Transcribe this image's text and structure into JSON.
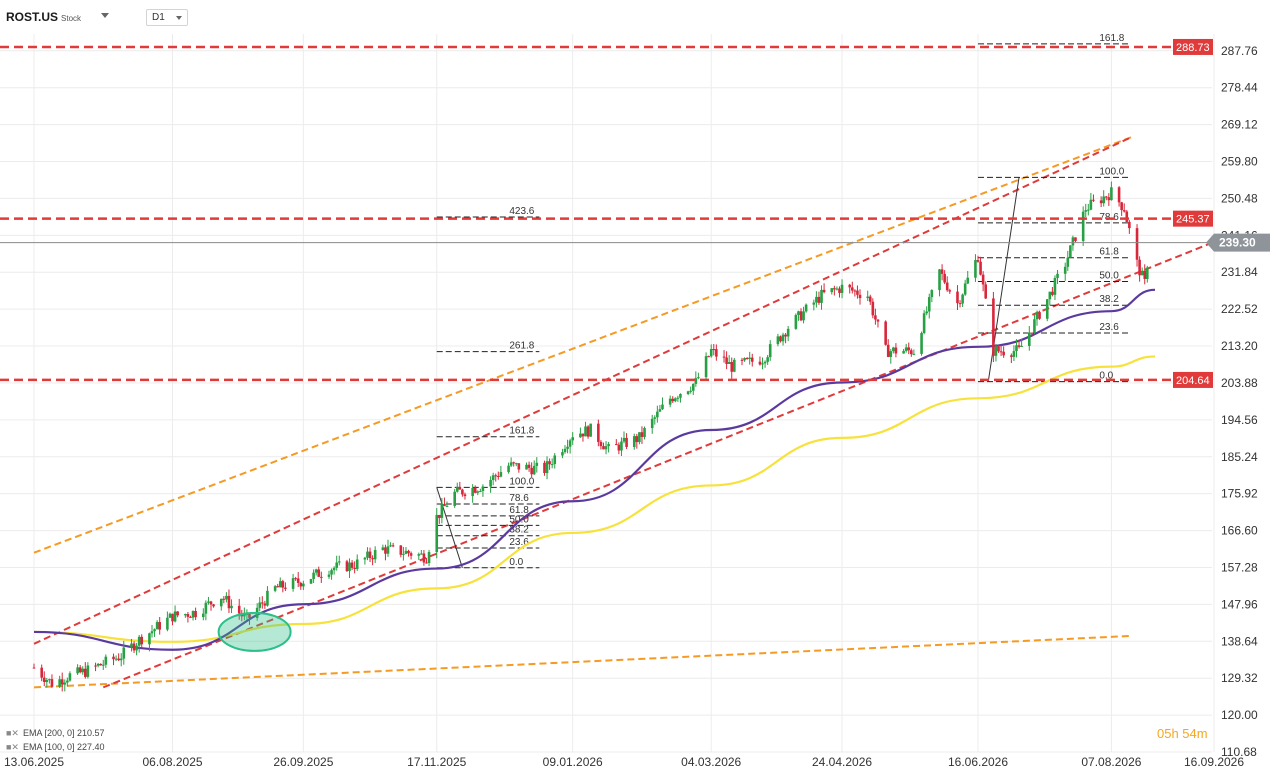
{
  "header": {
    "symbol": "ROST.US",
    "instrument_type": "Stock",
    "timeframe": "D1"
  },
  "chart_data": {
    "type": "candlestick",
    "title": "",
    "xlabel": "",
    "ylabel": "",
    "ylim": [
      110.68,
      292
    ],
    "grid": true,
    "x_ticks": [
      "13.06.2025",
      "06.08.2025",
      "26.09.2025",
      "17.11.2025",
      "09.01.2026",
      "04.03.2026",
      "24.04.2026",
      "16.06.2026",
      "07.08.2026",
      "16.09.2026"
    ],
    "y_ticks": [
      287.76,
      278.44,
      269.12,
      259.8,
      250.48,
      241.16,
      231.84,
      222.52,
      213.2,
      203.88,
      194.56,
      185.24,
      175.92,
      166.6,
      157.28,
      147.96,
      138.64,
      129.32,
      120.0,
      110.68
    ],
    "last_price": 239.3,
    "price_path": [
      [
        "13.06.2025",
        132
      ],
      [
        "20.06.2025",
        128
      ],
      [
        "27.06.2025",
        130
      ],
      [
        "03.07.2025",
        131
      ],
      [
        "17.07.2025",
        135
      ],
      [
        "24.07.2025",
        139
      ],
      [
        "06.08.2025",
        145
      ],
      [
        "15.08.2025",
        146
      ],
      [
        "25.08.2025",
        150
      ],
      [
        "04.09.2025",
        144
      ],
      [
        "15.09.2025",
        152
      ],
      [
        "26.09.2025",
        154
      ],
      [
        "06.10.2025",
        157
      ],
      [
        "16.10.2025",
        158
      ],
      [
        "27.10.2025",
        162
      ],
      [
        "06.11.2025",
        161
      ],
      [
        "13.11.2025",
        160
      ],
      [
        "17.11.2025",
        170
      ],
      [
        "24.11.2025",
        176
      ],
      [
        "05.12.2025",
        178
      ],
      [
        "15.12.2025",
        183
      ],
      [
        "29.12.2025",
        182
      ],
      [
        "09.01.2026",
        191
      ],
      [
        "16.01.2026",
        192
      ],
      [
        "23.01.2026",
        187
      ],
      [
        "04.02.2026",
        190
      ],
      [
        "16.02.2026",
        200
      ],
      [
        "26.02.2026",
        204
      ],
      [
        "04.03.2026",
        212
      ],
      [
        "12.03.2026",
        208
      ],
      [
        "24.03.2026",
        210
      ],
      [
        "03.04.2026",
        218
      ],
      [
        "16.04.2026",
        226
      ],
      [
        "24.04.2026",
        228
      ],
      [
        "04.05.2026",
        226
      ],
      [
        "11.05.2026",
        212
      ],
      [
        "22.05.2026",
        212
      ],
      [
        "01.06.2026",
        232
      ],
      [
        "08.06.2026",
        224
      ],
      [
        "16.06.2026",
        236
      ],
      [
        "22.06.2026",
        212
      ],
      [
        "02.07.2026",
        212
      ],
      [
        "13.07.2026",
        225
      ],
      [
        "20.07.2026",
        234
      ],
      [
        "28.07.2026",
        248
      ],
      [
        "07.08.2026",
        252
      ],
      [
        "12.08.2026",
        248
      ],
      [
        "17.08.2026",
        234
      ],
      [
        "20.08.2026",
        229
      ],
      [
        "22.08.2026",
        239.3
      ]
    ],
    "series": [
      {
        "name": "EMA [200, 0]",
        "last_value": 210.57,
        "color": "#f7e23b",
        "values": [
          [
            "13.06.2025",
            141
          ],
          [
            "06.08.2025",
            138.5
          ],
          [
            "26.09.2025",
            143
          ],
          [
            "17.11.2025",
            152
          ],
          [
            "09.01.2026",
            166
          ],
          [
            "04.03.2026",
            178
          ],
          [
            "24.04.2026",
            190
          ],
          [
            "16.06.2026",
            200
          ],
          [
            "07.08.2026",
            208
          ],
          [
            "24.08.2026",
            210.57
          ]
        ]
      },
      {
        "name": "EMA [100, 0]",
        "last_value": 227.4,
        "color": "#5b3a9e",
        "values": [
          [
            "13.06.2025",
            141
          ],
          [
            "06.08.2025",
            136.5
          ],
          [
            "26.09.2025",
            148
          ],
          [
            "17.11.2025",
            157
          ],
          [
            "09.01.2026",
            174
          ],
          [
            "04.03.2026",
            192
          ],
          [
            "24.04.2026",
            204
          ],
          [
            "16.06.2026",
            213
          ],
          [
            "07.08.2026",
            222
          ],
          [
            "24.08.2026",
            227.4
          ]
        ]
      }
    ],
    "horizontal_levels": [
      {
        "label": "288.73",
        "value": 288.73,
        "color": "#e03a3a"
      },
      {
        "label": "245.37",
        "value": 245.37,
        "color": "#e03a3a"
      },
      {
        "label": "204.64",
        "value": 204.64,
        "color": "#e03a3a"
      }
    ],
    "channel_lines": [
      {
        "color": "#f59a23",
        "points": [
          [
            "13.06.2025",
            161
          ],
          [
            "15.08.2026",
            266
          ]
        ]
      },
      {
        "color": "#f59a23",
        "points": [
          [
            "13.06.2025",
            127
          ],
          [
            "15.08.2026",
            140
          ]
        ]
      },
      {
        "color": "#e03a3a",
        "points": [
          [
            "13.06.2025",
            138
          ],
          [
            "15.08.2026",
            266
          ]
        ]
      },
      {
        "color": "#e03a3a",
        "points": [
          [
            "10.07.2025",
            127
          ],
          [
            "18.09.2026",
            240
          ]
        ]
      }
    ],
    "fib_right": {
      "start": "16.06.2026",
      "end": "14.08.2026",
      "levels": [
        {
          "label": "161.8",
          "value": 289.5
        },
        {
          "label": "100.0",
          "value": 255.8
        },
        {
          "label": "78.6",
          "value": 244.3
        },
        {
          "label": "61.8",
          "value": 235.5
        },
        {
          "label": "50.0",
          "value": 229.5
        },
        {
          "label": "38.2",
          "value": 223.5
        },
        {
          "label": "23.6",
          "value": 216.5
        },
        {
          "label": "0.0",
          "value": 204.2
        }
      ]
    },
    "fib_left": {
      "start": "17.11.2025",
      "end": "27.12.2025",
      "levels": [
        {
          "label": "423.6",
          "value": 245.8
        },
        {
          "label": "261.8",
          "value": 211.8
        },
        {
          "label": "161.8",
          "value": 190.3
        },
        {
          "label": "100.0",
          "value": 177.5
        },
        {
          "label": "78.6",
          "value": 173.3
        },
        {
          "label": "61.8",
          "value": 170.3
        },
        {
          "label": "50.0",
          "value": 167.9
        },
        {
          "label": "38.2",
          "value": 165.3
        },
        {
          "label": "23.6",
          "value": 162.2
        },
        {
          "label": "0.0",
          "value": 157.2
        }
      ]
    },
    "trend_segments": [
      {
        "points": [
          [
            "17.11.2025",
            177.5
          ],
          [
            "27.11.2025",
            157.2
          ]
        ]
      },
      {
        "points": [
          [
            "20.06.2026",
            204.2
          ],
          [
            "02.07.2026",
            255.8
          ]
        ]
      }
    ],
    "highlight_ellipse": {
      "center": [
        "07.09.2025",
        141
      ],
      "color": "#2bbf8a"
    }
  },
  "legend": [
    {
      "text": "EMA [200, 0] 210.57"
    },
    {
      "text": "EMA [100, 0] 227.40"
    }
  ],
  "countdown": "05h 54m",
  "colors": {
    "up": "#27a043",
    "down": "#d8263b",
    "grid": "#ececec",
    "axis_text": "#333333"
  }
}
